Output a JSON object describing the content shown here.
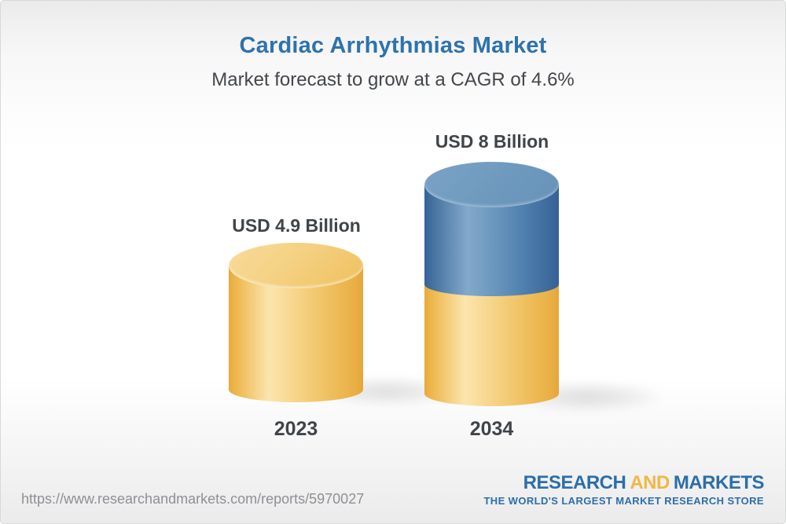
{
  "chart_data": {
    "type": "bar",
    "variant": "3d-cylinder-comparison",
    "title": "Cardiac Arrhythmias Market",
    "subtitle": "Market forecast to grow at a CAGR of 4.6%",
    "cagr_percent": 4.6,
    "unit": "USD Billion",
    "categories": [
      "2023",
      "2034"
    ],
    "values": [
      4.9,
      8
    ],
    "value_labels": [
      "USD 4.9 Billion",
      "USD 8 Billion"
    ],
    "encoding_note": "2034 cylinder shows the 2023 base level in gold with the forecast growth portion stacked in blue",
    "colors": {
      "base_gold": "#f0c261",
      "growth_blue": "#5d89b4",
      "title_blue": "#2e73ac",
      "label_text": "#3f4449"
    },
    "legend": false,
    "grid": false,
    "axes": false
  },
  "footer": {
    "url": "https://www.researchandmarkets.com/reports/5970027",
    "logo": {
      "research": "RESEARCH",
      "and": "AND",
      "markets": "MARKETS",
      "tagline": "THE WORLD'S LARGEST MARKET RESEARCH STORE",
      "blue": "#2d6ea8",
      "yellow": "#f0b844"
    }
  }
}
